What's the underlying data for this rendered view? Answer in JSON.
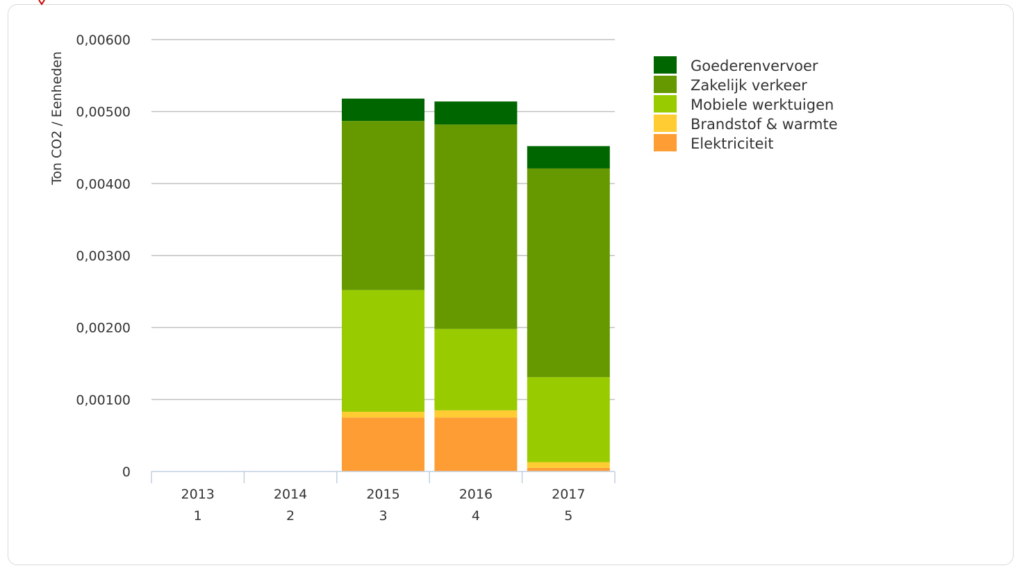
{
  "chart_data": {
    "type": "bar",
    "stacked": true,
    "ylabel": "Ton CO2 / Eenheden",
    "ylim": [
      0,
      0.006
    ],
    "yticks": [
      "0",
      "0,00100",
      "0,00200",
      "0,00300",
      "0,00400",
      "0,00500",
      "0,00600"
    ],
    "ytick_values": [
      0,
      0.001,
      0.002,
      0.003,
      0.004,
      0.005,
      0.006
    ],
    "categories": [
      {
        "year": "2013",
        "index": "1"
      },
      {
        "year": "2014",
        "index": "2"
      },
      {
        "year": "2015",
        "index": "3"
      },
      {
        "year": "2016",
        "index": "4"
      },
      {
        "year": "2017",
        "index": "5"
      }
    ],
    "series": [
      {
        "name": "Elektriciteit",
        "color": "#ff9d35",
        "values": [
          0,
          0,
          0.00075,
          0.00075,
          5e-05
        ]
      },
      {
        "name": "Brandstof & warmte",
        "color": "#ffcc33",
        "values": [
          0,
          0,
          8e-05,
          0.0001,
          8e-05
        ]
      },
      {
        "name": "Mobiele werktuigen",
        "color": "#99cc00",
        "values": [
          0,
          0,
          0.00169,
          0.00113,
          0.00118
        ]
      },
      {
        "name": "Zakelijk verkeer",
        "color": "#669900",
        "values": [
          0,
          0,
          0.00235,
          0.00284,
          0.0029
        ]
      },
      {
        "name": "Goederenvervoer",
        "color": "#006600",
        "values": [
          0,
          0,
          0.00031,
          0.00032,
          0.00031
        ]
      }
    ],
    "legend_order": [
      "Goederenvervoer",
      "Zakelijk verkeer",
      "Mobiele werktuigen",
      "Brandstof & warmte",
      "Elektriciteit"
    ],
    "legend_position": "top-right",
    "grid": true,
    "gridline_color": "#c0c0c0",
    "axis_color": "#c0d0e0"
  }
}
